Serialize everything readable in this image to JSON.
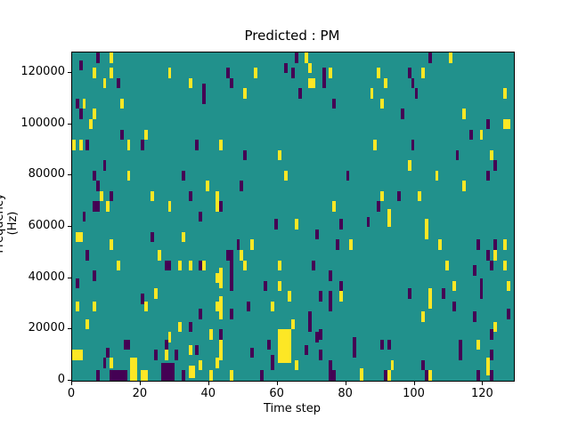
{
  "chart_data": {
    "type": "heatmap",
    "title": "Predicted : PM",
    "xlabel": "Time step",
    "ylabel": "Frequency (Hz)",
    "x_range": [
      0,
      129
    ],
    "y_range_hz": [
      0,
      128000
    ],
    "x_ticks": [
      0,
      20,
      40,
      60,
      80,
      100,
      120
    ],
    "y_ticks_hz": [
      0,
      20000,
      40000,
      60000,
      80000,
      100000,
      120000
    ],
    "grid": false,
    "legend": "none",
    "colors": {
      "background": "#21918c",
      "low": "#440154",
      "high": "#fde725",
      "text": "#000000"
    },
    "cell_units": {
      "t": "time step (x, left edge)",
      "f": "frequency in kHz (bottom edge)",
      "c": "p = low/purple, y = high/yellow",
      "default_w_steps": 1,
      "default_h_khz": 4
    },
    "cells": [
      [
        7,
        124,
        "p"
      ],
      [
        11,
        124,
        "y"
      ],
      [
        2,
        121,
        "p"
      ],
      [
        6,
        118,
        "y"
      ],
      [
        9,
        114,
        "y"
      ],
      [
        11,
        118,
        "y"
      ],
      [
        13,
        114,
        "p"
      ],
      [
        1,
        106,
        "p"
      ],
      [
        3,
        106,
        "y"
      ],
      [
        2,
        102,
        "p"
      ],
      [
        6,
        102,
        "y"
      ],
      [
        5,
        98,
        "y"
      ],
      [
        14,
        106,
        "y"
      ],
      [
        28,
        118,
        "y"
      ],
      [
        34,
        114,
        "y"
      ],
      [
        38,
        108,
        "p",
        1,
        8
      ],
      [
        14,
        94,
        "p"
      ],
      [
        21,
        94,
        "y"
      ],
      [
        65,
        124,
        "p"
      ],
      [
        68,
        124,
        "y"
      ],
      [
        69,
        120,
        "y"
      ],
      [
        62,
        120,
        "p"
      ],
      [
        45,
        118,
        "p"
      ],
      [
        46,
        114,
        "p"
      ],
      [
        53,
        118,
        "y"
      ],
      [
        64,
        118,
        "p"
      ],
      [
        69,
        114,
        "y",
        2,
        4
      ],
      [
        73,
        118,
        "p"
      ],
      [
        75,
        118,
        "y"
      ],
      [
        73,
        114,
        "p"
      ],
      [
        50,
        110,
        "y"
      ],
      [
        66,
        110,
        "p"
      ],
      [
        76,
        106,
        "p"
      ],
      [
        104,
        124,
        "p"
      ],
      [
        110,
        124,
        "y"
      ],
      [
        89,
        118,
        "y"
      ],
      [
        91,
        114,
        "y"
      ],
      [
        87,
        110,
        "y"
      ],
      [
        90,
        106,
        "y"
      ],
      [
        98,
        118,
        "p"
      ],
      [
        99,
        114,
        "p"
      ],
      [
        100,
        110,
        "p"
      ],
      [
        102,
        118,
        "y"
      ],
      [
        96,
        102,
        "p"
      ],
      [
        114,
        102,
        "y"
      ],
      [
        126,
        110,
        "y"
      ],
      [
        121,
        98,
        "p"
      ],
      [
        126,
        98,
        "y",
        2,
        4
      ],
      [
        116,
        94,
        "p"
      ],
      [
        119,
        94,
        "y"
      ],
      [
        0,
        90,
        "y"
      ],
      [
        2,
        90,
        "y"
      ],
      [
        4,
        90,
        "p"
      ],
      [
        16,
        90,
        "y"
      ],
      [
        20,
        90,
        "p"
      ],
      [
        36,
        90,
        "p"
      ],
      [
        9,
        82,
        "p"
      ],
      [
        6,
        78,
        "p"
      ],
      [
        16,
        78,
        "y"
      ],
      [
        7,
        74,
        "p"
      ],
      [
        8,
        70,
        "y"
      ],
      [
        11,
        70,
        "p"
      ],
      [
        23,
        70,
        "y"
      ],
      [
        10,
        66,
        "y"
      ],
      [
        6,
        66,
        "p",
        2,
        4
      ],
      [
        28,
        66,
        "y"
      ],
      [
        32,
        78,
        "p"
      ],
      [
        39,
        74,
        "y"
      ],
      [
        34,
        70,
        "p"
      ],
      [
        42,
        66,
        "y",
        1,
        8
      ],
      [
        3,
        62,
        "p"
      ],
      [
        37,
        62,
        "p"
      ],
      [
        43,
        90,
        "y"
      ],
      [
        50,
        86,
        "p"
      ],
      [
        60,
        86,
        "y"
      ],
      [
        62,
        78,
        "y"
      ],
      [
        80,
        78,
        "p"
      ],
      [
        49,
        74,
        "p"
      ],
      [
        43,
        66,
        "p"
      ],
      [
        76,
        66,
        "y"
      ],
      [
        88,
        90,
        "y"
      ],
      [
        99,
        90,
        "p"
      ],
      [
        112,
        86,
        "p"
      ],
      [
        122,
        86,
        "y"
      ],
      [
        123,
        82,
        "p"
      ],
      [
        98,
        82,
        "y"
      ],
      [
        106,
        78,
        "y"
      ],
      [
        121,
        78,
        "p"
      ],
      [
        114,
        74,
        "y"
      ],
      [
        90,
        70,
        "y"
      ],
      [
        95,
        70,
        "p"
      ],
      [
        101,
        70,
        "y"
      ],
      [
        89,
        66,
        "p"
      ],
      [
        92,
        63,
        "y"
      ],
      [
        1,
        54,
        "y",
        2,
        4
      ],
      [
        11,
        51,
        "y"
      ],
      [
        4,
        47,
        "p"
      ],
      [
        13,
        43,
        "y"
      ],
      [
        6,
        39,
        "p"
      ],
      [
        1,
        36,
        "p"
      ],
      [
        23,
        54,
        "p"
      ],
      [
        32,
        54,
        "y"
      ],
      [
        25,
        47,
        "y"
      ],
      [
        27,
        43,
        "p",
        2,
        4
      ],
      [
        31,
        43,
        "y"
      ],
      [
        34,
        43,
        "y"
      ],
      [
        37,
        43,
        "p"
      ],
      [
        38,
        43,
        "y"
      ],
      [
        42,
        38,
        "y"
      ],
      [
        24,
        32,
        "y"
      ],
      [
        59,
        59,
        "p"
      ],
      [
        65,
        59,
        "y"
      ],
      [
        71,
        55,
        "p"
      ],
      [
        78,
        59,
        "p"
      ],
      [
        48,
        51,
        "p"
      ],
      [
        52,
        51,
        "y"
      ],
      [
        77,
        51,
        "p"
      ],
      [
        81,
        51,
        "y"
      ],
      [
        45,
        47,
        "p",
        2,
        4
      ],
      [
        49,
        47,
        "y"
      ],
      [
        46,
        35,
        "p",
        1,
        12
      ],
      [
        50,
        43,
        "y"
      ],
      [
        43,
        36,
        "y",
        1,
        8
      ],
      [
        60,
        43,
        "y"
      ],
      [
        70,
        43,
        "p"
      ],
      [
        75,
        39,
        "p"
      ],
      [
        56,
        35,
        "p"
      ],
      [
        60,
        35,
        "y"
      ],
      [
        78,
        35,
        "p"
      ],
      [
        86,
        60,
        "p"
      ],
      [
        92,
        60,
        "y"
      ],
      [
        103,
        55,
        "y",
        1,
        8
      ],
      [
        107,
        51,
        "y"
      ],
      [
        118,
        51,
        "p"
      ],
      [
        123,
        51,
        "p"
      ],
      [
        126,
        51,
        "y"
      ],
      [
        121,
        47,
        "p"
      ],
      [
        123,
        47,
        "y"
      ],
      [
        122,
        43,
        "p"
      ],
      [
        126,
        43,
        "y"
      ],
      [
        109,
        43,
        "y"
      ],
      [
        117,
        41,
        "p"
      ],
      [
        111,
        35,
        "y"
      ],
      [
        127,
        35,
        "y"
      ],
      [
        98,
        32,
        "p"
      ],
      [
        108,
        32,
        "p"
      ],
      [
        119,
        32,
        "p",
        1,
        8
      ],
      [
        1,
        27,
        "y"
      ],
      [
        6,
        27,
        "y"
      ],
      [
        20,
        30,
        "p"
      ],
      [
        21,
        27,
        "y"
      ],
      [
        4,
        20,
        "y"
      ],
      [
        37,
        24,
        "p"
      ],
      [
        42,
        27,
        "y"
      ],
      [
        31,
        19,
        "y"
      ],
      [
        34,
        19,
        "p"
      ],
      [
        40,
        16,
        "y"
      ],
      [
        28,
        15,
        "y"
      ],
      [
        15,
        12,
        "p",
        2,
        4
      ],
      [
        10,
        9,
        "p"
      ],
      [
        0,
        8,
        "y",
        3,
        4
      ],
      [
        27,
        12,
        "p"
      ],
      [
        27,
        8,
        "y"
      ],
      [
        24,
        8,
        "p"
      ],
      [
        30,
        8,
        "p"
      ],
      [
        9,
        5,
        "p"
      ],
      [
        11,
        5,
        "y"
      ],
      [
        17,
        0,
        "y",
        2,
        9
      ],
      [
        20,
        0,
        "y",
        2,
        4
      ],
      [
        11,
        0,
        "p",
        5,
        4
      ],
      [
        7,
        0,
        "p"
      ],
      [
        34,
        1,
        "y",
        2,
        5
      ],
      [
        34,
        10,
        "y"
      ],
      [
        36,
        10,
        "p"
      ],
      [
        37,
        4,
        "y"
      ],
      [
        42,
        5,
        "y"
      ],
      [
        26,
        0,
        "p",
        4,
        7
      ],
      [
        32,
        0,
        "p"
      ],
      [
        40,
        0,
        "y"
      ],
      [
        43,
        24,
        "y",
        1,
        9
      ],
      [
        51,
        27,
        "p"
      ],
      [
        58,
        27,
        "y"
      ],
      [
        63,
        31,
        "y"
      ],
      [
        72,
        31,
        "p"
      ],
      [
        75,
        27,
        "p",
        1,
        8
      ],
      [
        78,
        31,
        "y"
      ],
      [
        46,
        24,
        "p"
      ],
      [
        69,
        19,
        "p",
        1,
        8
      ],
      [
        64,
        20,
        "y"
      ],
      [
        43,
        16,
        "p"
      ],
      [
        71,
        15,
        "p"
      ],
      [
        72,
        16,
        "p"
      ],
      [
        43,
        8,
        "y",
        1,
        8
      ],
      [
        57,
        12,
        "p"
      ],
      [
        60,
        7,
        "y",
        4,
        13
      ],
      [
        58,
        4,
        "p",
        1,
        6
      ],
      [
        52,
        9,
        "p"
      ],
      [
        68,
        10,
        "p"
      ],
      [
        72,
        8,
        "p"
      ],
      [
        65,
        4,
        "y"
      ],
      [
        75,
        0,
        "p",
        1,
        8
      ],
      [
        76,
        0,
        "p"
      ],
      [
        46,
        0,
        "y"
      ],
      [
        82,
        9,
        "p",
        1,
        8
      ],
      [
        84,
        0,
        "y",
        1,
        5
      ],
      [
        55,
        0,
        "p"
      ],
      [
        104,
        28,
        "y",
        1,
        8
      ],
      [
        111,
        27,
        "p"
      ],
      [
        102,
        23,
        "y"
      ],
      [
        117,
        23,
        "p"
      ],
      [
        127,
        24,
        "p"
      ],
      [
        123,
        19,
        "y"
      ],
      [
        122,
        16,
        "p"
      ],
      [
        90,
        12,
        "p"
      ],
      [
        92,
        12,
        "p"
      ],
      [
        113,
        8,
        "p",
        1,
        8
      ],
      [
        118,
        12,
        "y"
      ],
      [
        122,
        8,
        "p"
      ],
      [
        102,
        4,
        "p"
      ],
      [
        93,
        4,
        "y"
      ],
      [
        121,
        2,
        "y",
        1,
        7
      ],
      [
        122,
        0,
        "p"
      ],
      [
        91,
        0,
        "p"
      ],
      [
        92,
        0,
        "y"
      ],
      [
        103,
        0,
        "p"
      ],
      [
        104,
        0,
        "y"
      ],
      [
        118,
        0,
        "p"
      ]
    ]
  }
}
